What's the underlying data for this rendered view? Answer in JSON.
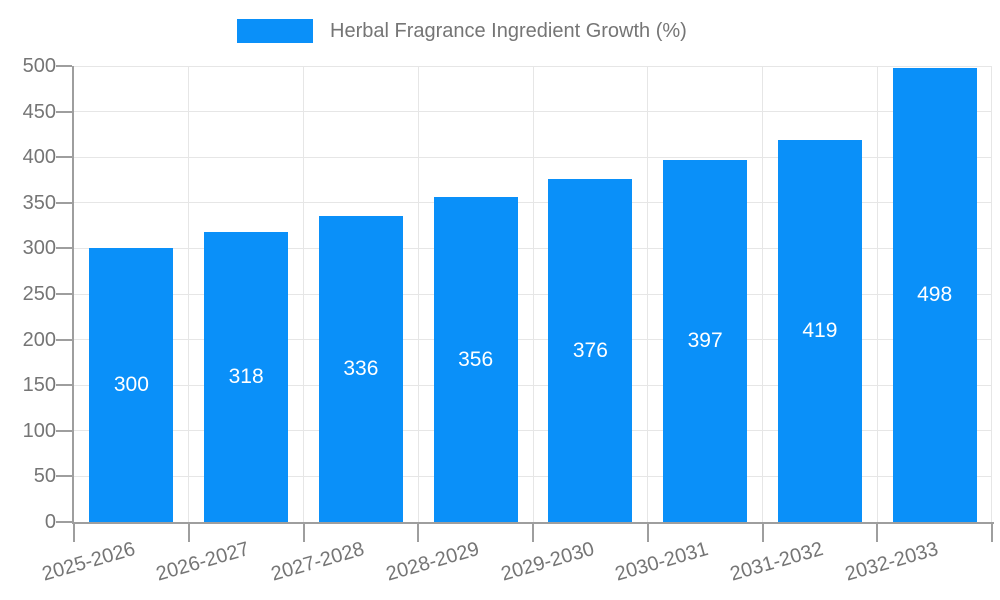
{
  "legend": {
    "label": "Herbal Fragrance Ingredient Growth (%)"
  },
  "colors": {
    "bar": "#0A90F9",
    "grid": "#E6E6E6",
    "axis": "#9E9E9E",
    "tick_text": "#757575",
    "value_label": "#FFFFFF",
    "background": "#FFFFFF"
  },
  "chart_data": {
    "type": "bar",
    "title": "",
    "series_name": "Herbal Fragrance Ingredient Growth (%)",
    "categories": [
      "2025-2026",
      "2026-2027",
      "2027-2028",
      "2028-2029",
      "2029-2030",
      "2030-2031",
      "2031-2032",
      "2032-2033"
    ],
    "values": [
      300,
      318,
      336,
      356,
      376,
      397,
      419,
      498
    ],
    "xlabel": "",
    "ylabel": "",
    "ylim": [
      0,
      500
    ],
    "yticks": [
      0,
      50,
      100,
      150,
      200,
      250,
      300,
      350,
      400,
      450,
      500
    ],
    "grid": true,
    "legend_position": "top",
    "value_labels": "inside-center",
    "x_label_rotation_deg": -16
  }
}
